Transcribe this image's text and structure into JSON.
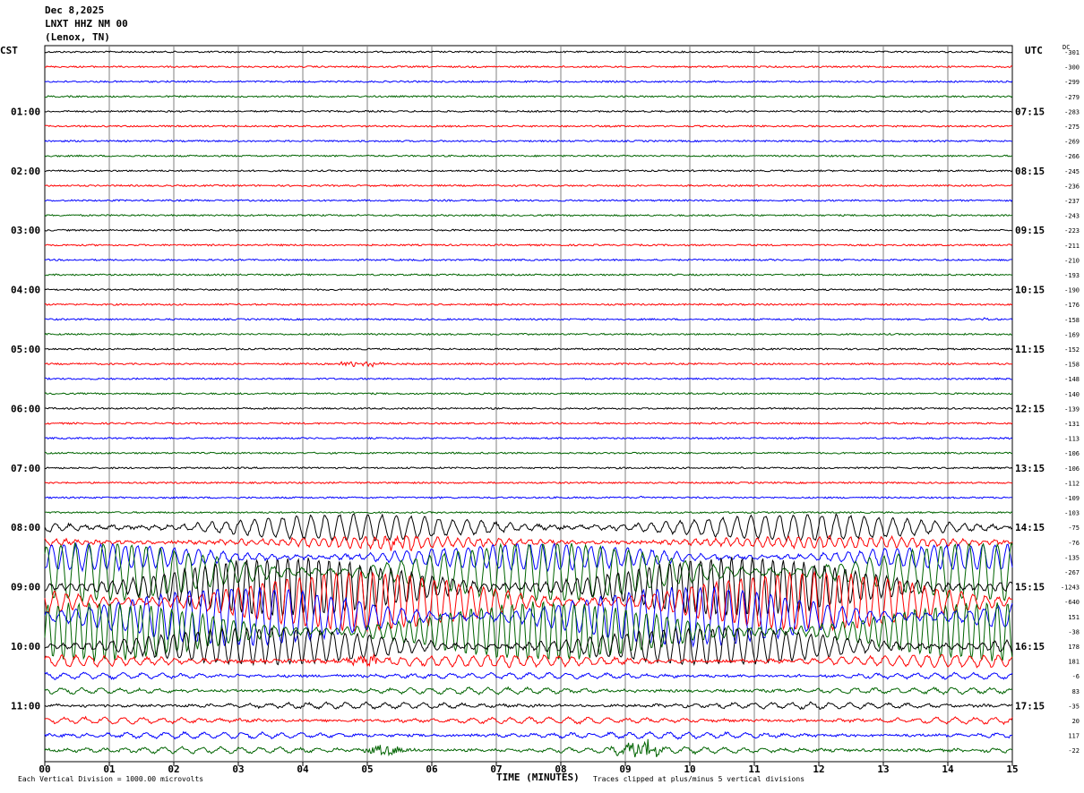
{
  "header": {
    "date": "Dec 8,2025",
    "station": "LNXT HHZ NM 00",
    "location": "(Lenox, TN)"
  },
  "left_axis_label": "CST",
  "right_axis_label": "UTC",
  "dc_label": "DC",
  "footer": {
    "scale_note": "Each Vertical Division = 1000.00 microvolts",
    "xlabel": "TIME (MINUTES)",
    "clip_note": "Traces clipped at plus/minus 5 vertical divisions"
  },
  "colors": {
    "cycle": [
      "#000000",
      "#ff0000",
      "#0000ff",
      "#006400"
    ],
    "grid": "#808080"
  },
  "chart_data": {
    "type": "line",
    "title": "",
    "xlabel": "TIME (MINUTES)",
    "xlim": [
      0,
      15
    ],
    "x_ticks": [
      "00",
      "01",
      "02",
      "03",
      "04",
      "05",
      "06",
      "07",
      "08",
      "09",
      "10",
      "11",
      "12",
      "13",
      "14",
      "15"
    ],
    "left_hour_labels": [
      {
        "row": 4,
        "label": "01:00"
      },
      {
        "row": 8,
        "label": "02:00"
      },
      {
        "row": 12,
        "label": "03:00"
      },
      {
        "row": 16,
        "label": "04:00"
      },
      {
        "row": 20,
        "label": "05:00"
      },
      {
        "row": 24,
        "label": "06:00"
      },
      {
        "row": 28,
        "label": "07:00"
      },
      {
        "row": 32,
        "label": "08:00"
      },
      {
        "row": 36,
        "label": "09:00"
      },
      {
        "row": 40,
        "label": "10:00"
      },
      {
        "row": 44,
        "label": "11:00"
      }
    ],
    "right_hour_labels": [
      {
        "row": 4,
        "label": "07:15"
      },
      {
        "row": 8,
        "label": "08:15"
      },
      {
        "row": 12,
        "label": "09:15"
      },
      {
        "row": 16,
        "label": "10:15"
      },
      {
        "row": 20,
        "label": "11:15"
      },
      {
        "row": 24,
        "label": "12:15"
      },
      {
        "row": 28,
        "label": "13:15"
      },
      {
        "row": 32,
        "label": "14:15"
      },
      {
        "row": 36,
        "label": "15:15"
      },
      {
        "row": 40,
        "label": "16:15"
      },
      {
        "row": 44,
        "label": "17:15"
      }
    ],
    "dc_offsets": [
      "-301",
      "-300",
      "-299",
      "-279",
      "-283",
      "-275",
      "-269",
      "-266",
      "-245",
      "-236",
      "-237",
      "-243",
      "-223",
      "-211",
      "-210",
      "-193",
      "-190",
      "-176",
      "-158",
      "-169",
      "-152",
      "-158",
      "-148",
      "-140",
      "-139",
      "-131",
      "-113",
      "-106",
      "-106",
      "-112",
      "-109",
      "-103",
      "-75",
      "-76",
      "-135",
      "-267",
      "-1243",
      "-640",
      "151",
      "-38",
      "178",
      "181",
      "-6",
      "83",
      "-35",
      "20",
      "117",
      "-22"
    ],
    "trace_count": 48,
    "trace_activity": {
      "quiet_rows": "0-31",
      "large_oscillation_rows": [
        32,
        33,
        34,
        35,
        36,
        37,
        38,
        39,
        40,
        41
      ],
      "moderate_rows": [
        42,
        43,
        44,
        45,
        46,
        47
      ],
      "events": [
        {
          "row": 18,
          "minute": 14.6,
          "amplitude": "small spike"
        },
        {
          "row": 21,
          "minute": 4.9,
          "amplitude": "small burst"
        },
        {
          "row": 30,
          "minute": 9.25,
          "amplitude": "small spike"
        },
        {
          "row": 33,
          "minute": 5.5,
          "amplitude": "burst"
        },
        {
          "row": 41,
          "minute": 5.0,
          "amplitude": "burst"
        },
        {
          "row": 43,
          "minute": 0.35,
          "amplitude": "spike"
        },
        {
          "row": 47,
          "minute": 5.3,
          "amplitude": "burst"
        },
        {
          "row": 47,
          "minute": 9.2,
          "amplitude": "large burst"
        }
      ]
    }
  }
}
